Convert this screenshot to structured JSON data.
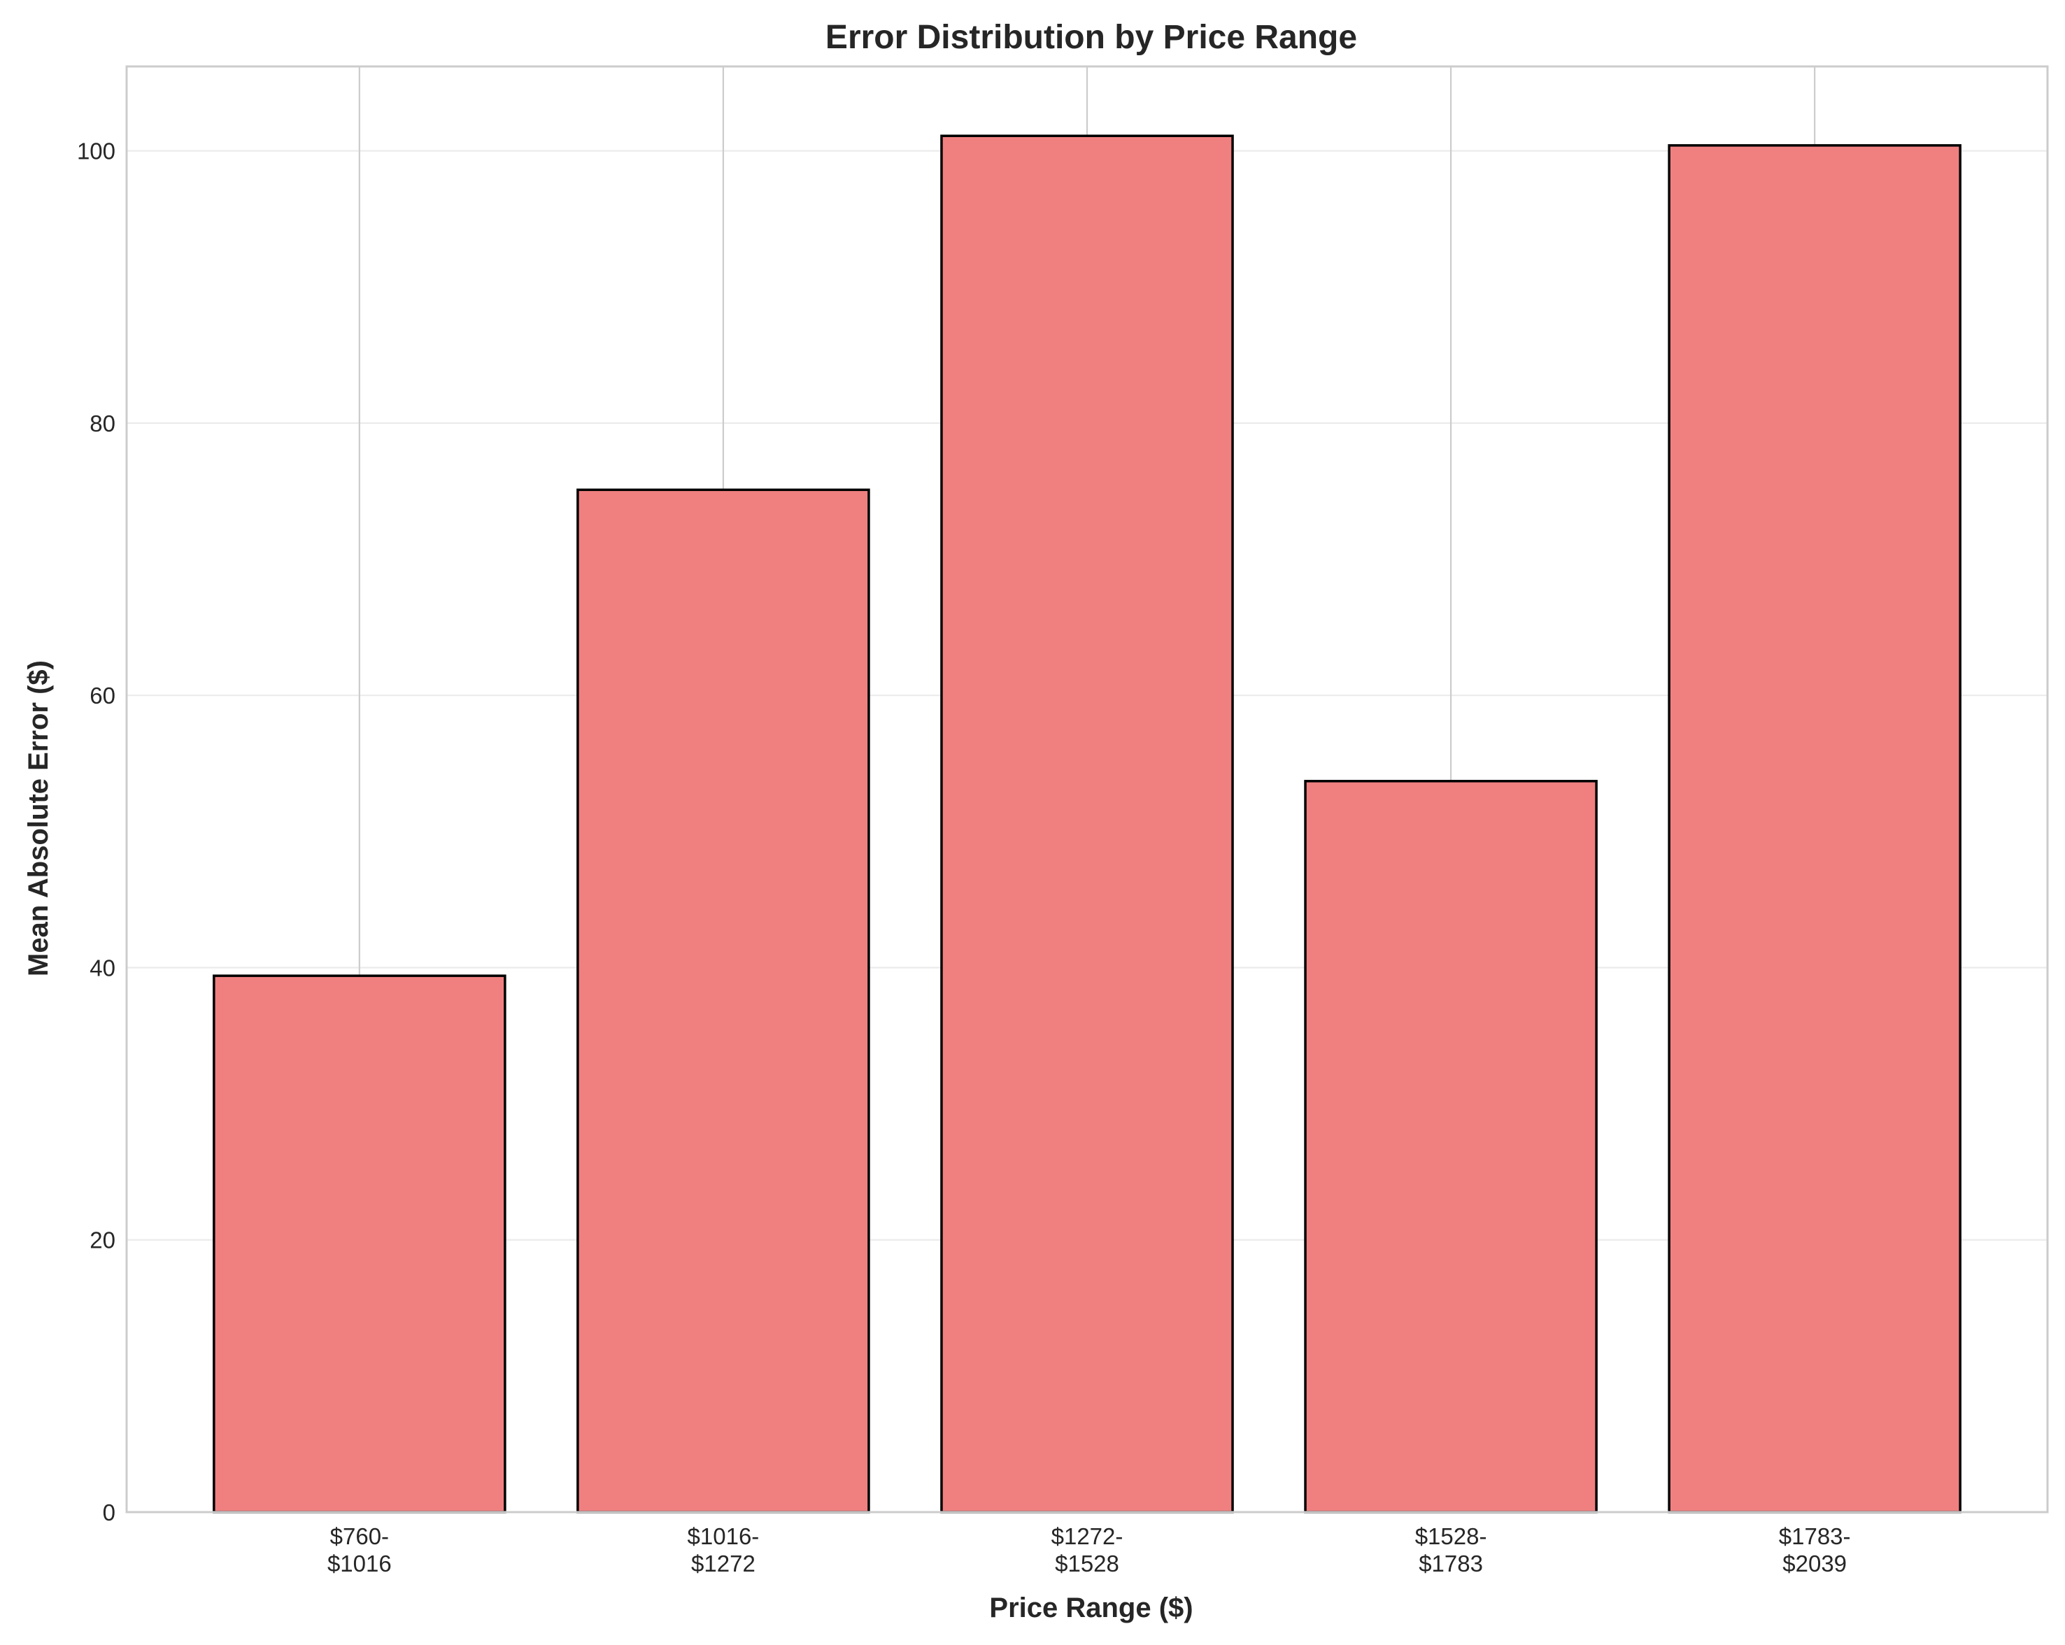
{
  "chart_data": {
    "type": "bar",
    "title": "Error Distribution by Price Range",
    "xlabel": "Price Range ($)",
    "ylabel": "Mean Absolute Error ($)",
    "categories": [
      "$760-\n$1016",
      "$1016-\n$1272",
      "$1272-\n$1528",
      "$1528-\n$1783",
      "$1783-\n$2039"
    ],
    "values": [
      39.4,
      75.1,
      101.1,
      53.7,
      100.4
    ],
    "ylim": [
      0,
      106.2
    ],
    "yticks": [
      0,
      20,
      40,
      60,
      80,
      100
    ],
    "grid": true,
    "legend": "none",
    "colors": {
      "bar_fill": "#f08080",
      "bar_edge": "#000000",
      "grid": "#ebebeb",
      "vgrid": "#cccccc",
      "spine": "#cccccc",
      "text": "#262626"
    }
  }
}
